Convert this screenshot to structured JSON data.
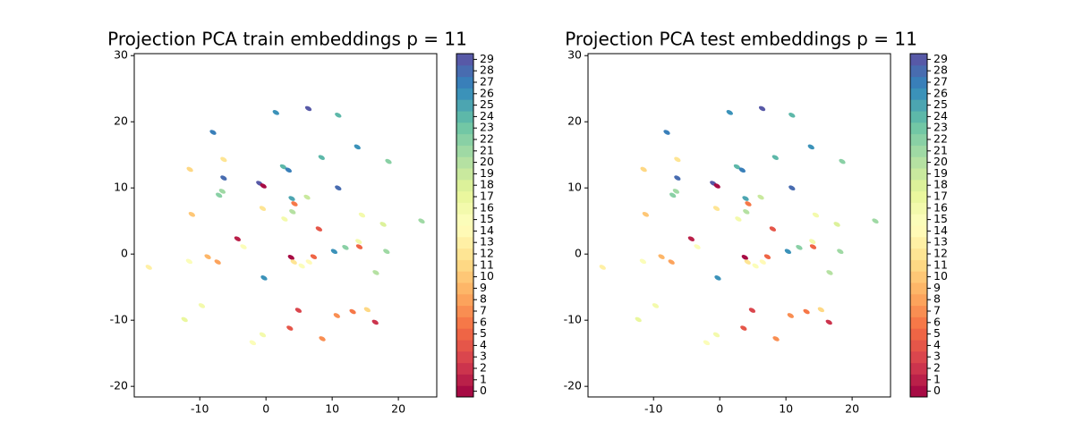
{
  "chart_data": [
    {
      "type": "scatter",
      "title": "Projection PCA train embeddings p = 11",
      "x": [
        1.5,
        6.4,
        10.9,
        -8,
        13.8,
        8.4,
        18.5,
        -11.5,
        -6.4,
        -6.4,
        -1,
        -0.4,
        2.6,
        3.4,
        -6.6,
        -7.1,
        10.9,
        3.9,
        4.3,
        4,
        6.2,
        -11.2,
        -0.5,
        2.8,
        8,
        14.5,
        17.7,
        23.5,
        -4.3,
        -3.4,
        14,
        14.1,
        12,
        10.3,
        18.2,
        -8.8,
        -7.3,
        -11.6,
        -17.7,
        3.8,
        4.2,
        7.2,
        6.5,
        5.4,
        16.6,
        -0.3,
        -9.7,
        -12.3,
        4.9,
        15.3,
        13.1,
        10.7,
        16.5,
        3.6,
        8.5,
        -2,
        -0.5
      ],
      "y": [
        21.4,
        22,
        21,
        18.4,
        16.2,
        14.6,
        14,
        12.8,
        14.3,
        11.5,
        10.7,
        10.3,
        13.2,
        12.7,
        9.5,
        8.9,
        10,
        8.4,
        7.6,
        6.4,
        8.6,
        6,
        6.9,
        5.3,
        3.8,
        5.9,
        4.5,
        5,
        2.3,
        1.1,
        1.9,
        1.1,
        1,
        0.4,
        0.4,
        -0.4,
        -1.2,
        -1.1,
        -2,
        -0.5,
        -1.2,
        -0.4,
        -1.2,
        -1.8,
        -2.8,
        -3.6,
        -7.8,
        -9.9,
        -8.5,
        -8.4,
        -8.7,
        -9.3,
        -10.3,
        -11.2,
        -12.8,
        -13.4,
        -12.2
      ],
      "c": [
        26,
        29,
        24,
        27,
        26,
        24,
        22,
        11,
        12,
        28,
        29,
        0,
        24,
        27,
        21,
        22,
        28,
        25,
        6,
        20,
        19,
        10,
        12,
        16,
        4,
        16,
        18,
        21,
        1,
        15,
        16,
        5,
        22,
        26,
        21,
        9,
        8,
        15,
        13,
        0,
        12,
        5,
        14,
        15,
        20,
        26,
        16,
        17,
        3,
        11,
        6,
        7,
        2,
        4,
        7,
        15,
        16
      ],
      "colormap": [
        "#9e0142",
        "#d53e4f",
        "#f46d43",
        "#fdae61",
        "#fee08b",
        "#ffffbf",
        "#e6f598",
        "#abdda4",
        "#66c2a5",
        "#3288bd",
        "#5e4fa2"
      ],
      "clim": [
        -0.5,
        29.5
      ],
      "cticks": [
        0,
        1,
        2,
        3,
        4,
        5,
        6,
        7,
        8,
        9,
        10,
        11,
        12,
        13,
        14,
        15,
        16,
        17,
        18,
        19,
        20,
        21,
        22,
        23,
        24,
        25,
        26,
        27,
        28,
        29
      ],
      "xlim": [
        -19.9,
        25.8
      ],
      "ylim": [
        -21.6,
        30.3
      ],
      "xticks": [
        -10,
        0,
        10,
        20
      ],
      "yticks": [
        -20,
        -10,
        0,
        10,
        20,
        30
      ]
    },
    {
      "type": "scatter",
      "title": "Projection PCA test embeddings p = 11",
      "x": [
        1.5,
        6.4,
        10.9,
        -8,
        13.8,
        8.4,
        18.5,
        -11.5,
        -6.4,
        -6.4,
        -1,
        -0.4,
        2.6,
        3.4,
        -6.6,
        -7.1,
        10.9,
        3.9,
        4.3,
        4,
        6.2,
        -11.2,
        -0.5,
        2.8,
        8,
        14.5,
        17.7,
        23.5,
        -4.3,
        -3.4,
        14,
        14.1,
        12,
        10.3,
        18.2,
        -8.8,
        -7.3,
        -11.6,
        -17.7,
        3.8,
        4.2,
        7.2,
        6.5,
        5.4,
        16.6,
        -0.3,
        -9.7,
        -12.3,
        4.9,
        15.3,
        13.1,
        10.7,
        16.5,
        3.6,
        8.5,
        -2,
        -0.5
      ],
      "y": [
        21.4,
        22,
        21,
        18.4,
        16.2,
        14.6,
        14,
        12.8,
        14.3,
        11.5,
        10.7,
        10.3,
        13.2,
        12.7,
        9.5,
        8.9,
        10,
        8.4,
        7.6,
        6.4,
        8.6,
        6,
        6.9,
        5.3,
        3.8,
        5.9,
        4.5,
        5,
        2.3,
        1.1,
        1.9,
        1.1,
        1,
        0.4,
        0.4,
        -0.4,
        -1.2,
        -1.1,
        -2,
        -0.5,
        -1.2,
        -0.4,
        -1.2,
        -1.8,
        -2.8,
        -3.6,
        -7.8,
        -9.9,
        -8.5,
        -8.4,
        -8.7,
        -9.3,
        -10.3,
        -11.2,
        -12.8,
        -13.4,
        -12.2
      ],
      "c": [
        26,
        29,
        24,
        27,
        26,
        24,
        22,
        11,
        12,
        28,
        29,
        0,
        24,
        27,
        21,
        22,
        28,
        25,
        6,
        20,
        19,
        10,
        12,
        16,
        4,
        16,
        18,
        21,
        1,
        15,
        16,
        5,
        22,
        26,
        21,
        9,
        8,
        15,
        13,
        0,
        12,
        5,
        14,
        15,
        20,
        26,
        16,
        17,
        3,
        11,
        6,
        7,
        2,
        4,
        7,
        15,
        16
      ],
      "colormap": [
        "#9e0142",
        "#d53e4f",
        "#f46d43",
        "#fdae61",
        "#fee08b",
        "#ffffbf",
        "#e6f598",
        "#abdda4",
        "#66c2a5",
        "#3288bd",
        "#5e4fa2"
      ],
      "clim": [
        -0.5,
        29.5
      ],
      "cticks": [
        0,
        1,
        2,
        3,
        4,
        5,
        6,
        7,
        8,
        9,
        10,
        11,
        12,
        13,
        14,
        15,
        16,
        17,
        18,
        19,
        20,
        21,
        22,
        23,
        24,
        25,
        26,
        27,
        28,
        29
      ],
      "xlim": [
        -19.9,
        25.8
      ],
      "ylim": [
        -21.6,
        30.3
      ],
      "xticks": [
        -10,
        0,
        10,
        20
      ],
      "yticks": [
        -20,
        -10,
        0,
        10,
        20,
        30
      ]
    }
  ]
}
